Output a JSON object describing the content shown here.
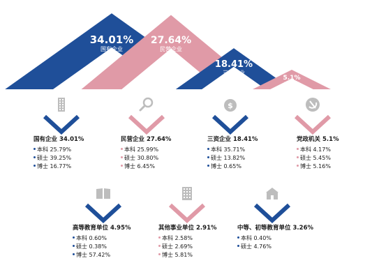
{
  "colors": {
    "blue": "#1f4f99",
    "pink": "#e09aa7",
    "icon_gray": "#bdbdbd",
    "dark": "#1a1a1a"
  },
  "chart_data": {
    "type": "bar",
    "title": "",
    "categories": [
      "国有企业",
      "民营企业",
      "三资企业",
      "党政机关",
      "高等教育单位",
      "其他事业单位",
      "中等、初等教育单位"
    ],
    "values": [
      34.01,
      27.64,
      18.41,
      5.1,
      4.95,
      2.91,
      3.26
    ],
    "labels": [
      "34.01%",
      "27.64%",
      "18.41%",
      "5.1%",
      "4.95%",
      "2.91%",
      "3.26%"
    ],
    "breakdown": [
      {
        "icon": "building-icon",
        "color": "blue",
        "rows": [
          {
            "label": "本科",
            "value": "25.79%"
          },
          {
            "label": "硕士",
            "value": "39.25%"
          },
          {
            "label": "博士",
            "value": "16.77%"
          }
        ]
      },
      {
        "icon": "magnifier-icon",
        "color": "pink",
        "rows": [
          {
            "label": "本科",
            "value": "25.99%"
          },
          {
            "label": "硕士",
            "value": "30.80%"
          },
          {
            "label": "博士",
            "value": "6.45%"
          }
        ]
      },
      {
        "icon": "money-bag-icon",
        "color": "blue",
        "rows": [
          {
            "label": "本科",
            "value": "35.71%"
          },
          {
            "label": "硕士",
            "value": "13.82%"
          },
          {
            "label": "博士",
            "value": "0.65%"
          }
        ]
      },
      {
        "icon": "hammer-sickle-icon",
        "color": "pink",
        "rows": [
          {
            "label": "本科",
            "value": "4.17%"
          },
          {
            "label": "硕士",
            "value": "5.45%"
          },
          {
            "label": "博士",
            "value": "5.16%"
          }
        ]
      },
      {
        "icon": "book-icon",
        "color": "blue",
        "rows": [
          {
            "label": "本科",
            "value": "0.60%"
          },
          {
            "label": "硕士",
            "value": "0.38%"
          },
          {
            "label": "博士",
            "value": "57.42%"
          }
        ]
      },
      {
        "icon": "office-building-icon",
        "color": "pink",
        "rows": [
          {
            "label": "本科",
            "value": "2.58%"
          },
          {
            "label": "硕士",
            "value": "2.69%"
          },
          {
            "label": "博士",
            "value": "5.81%"
          }
        ]
      },
      {
        "icon": "school-icon",
        "color": "blue",
        "rows": [
          {
            "label": "本科",
            "value": "0.40%"
          },
          {
            "label": "硕士",
            "value": "4.76%"
          }
        ]
      }
    ],
    "top_triangles": [
      0,
      1,
      2,
      3
    ]
  }
}
